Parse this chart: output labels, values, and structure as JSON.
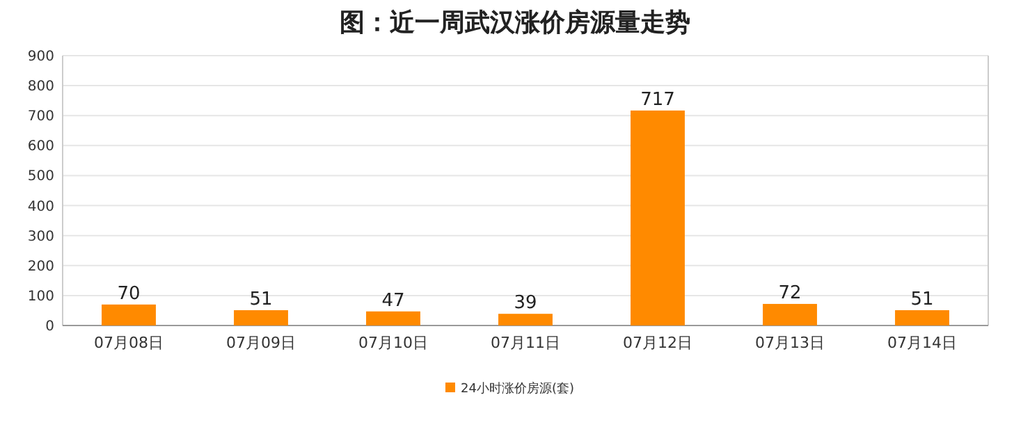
{
  "chart_data": {
    "type": "bar",
    "title": "图：近一周武汉涨价房源量走势",
    "categories": [
      "07月08日",
      "07月09日",
      "07月10日",
      "07月11日",
      "07月12日",
      "07月13日",
      "07月14日"
    ],
    "series": [
      {
        "name": "24小时涨价房源(套)",
        "color": "#ff8a00",
        "values": [
          70,
          51,
          47,
          39,
          717,
          72,
          51
        ]
      }
    ],
    "ylim": [
      0,
      900
    ],
    "yticks": [
      0,
      100,
      200,
      300,
      400,
      500,
      600,
      700,
      800,
      900
    ],
    "grid": "y",
    "legend": "bottom",
    "data_labels": true
  }
}
